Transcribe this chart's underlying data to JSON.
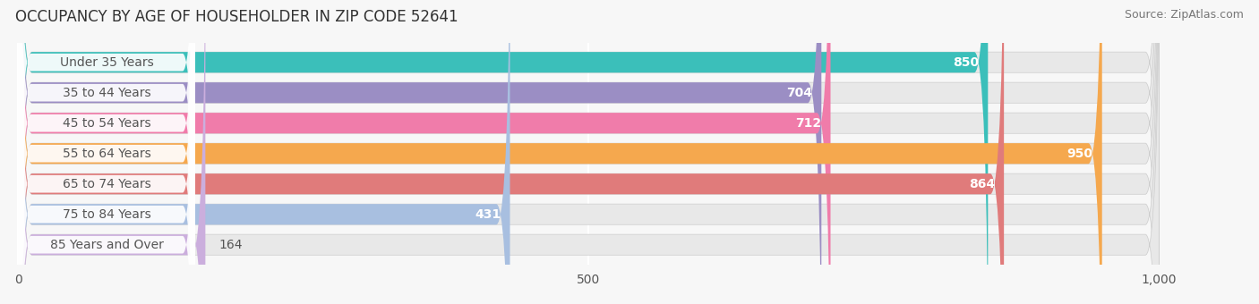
{
  "title": "OCCUPANCY BY AGE OF HOUSEHOLDER IN ZIP CODE 52641",
  "source": "Source: ZipAtlas.com",
  "categories": [
    "Under 35 Years",
    "35 to 44 Years",
    "45 to 54 Years",
    "55 to 64 Years",
    "65 to 74 Years",
    "75 to 84 Years",
    "85 Years and Over"
  ],
  "values": [
    850,
    704,
    712,
    950,
    864,
    431,
    164
  ],
  "bar_colors": [
    "#3bbfba",
    "#9b8ec4",
    "#f07caa",
    "#f5a84e",
    "#e07b7b",
    "#a8bfe0",
    "#cbaedd"
  ],
  "bar_bg_color": "#e8e8e8",
  "label_bg_color": "#ffffff",
  "xlim_max": 1000,
  "xticks": [
    0,
    500,
    1000
  ],
  "xtick_labels": [
    "0",
    "500",
    "1,000"
  ],
  "title_fontsize": 12,
  "source_fontsize": 9,
  "label_fontsize": 10,
  "value_fontsize": 10,
  "background_color": "#f7f7f7",
  "bar_bg_full_color": "#e8e8e8",
  "value_threshold": 400,
  "label_text_color": "#555555"
}
